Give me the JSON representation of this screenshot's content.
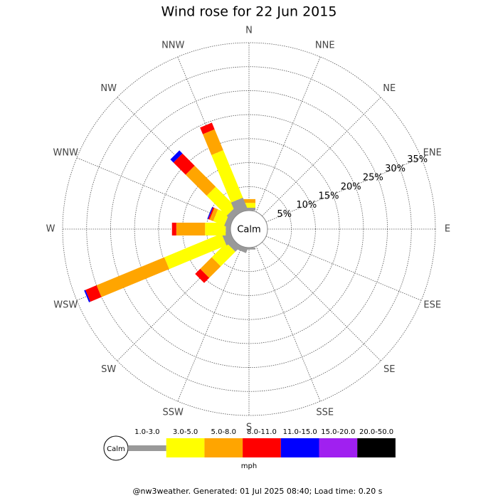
{
  "chart_data": {
    "type": "windrose",
    "title": "Wind rose for 22 Jun 2015",
    "categories": [
      "N",
      "NNE",
      "NE",
      "ENE",
      "E",
      "ESE",
      "SE",
      "SSE",
      "S",
      "SSW",
      "SW",
      "WSW",
      "W",
      "WNW",
      "NW",
      "NNW"
    ],
    "calm_label": "Calm",
    "series": [
      {
        "name": "1.0-3.0",
        "color": "#999999",
        "values": [
          0.6,
          0,
          0,
          0,
          0,
          0,
          0,
          0,
          0.4,
          1.0,
          1.5,
          1.8,
          1.0,
          1.2,
          1.4,
          2.7
        ]
      },
      {
        "name": "3.0-5.0",
        "color": "#ffff00",
        "values": [
          1.0,
          0,
          0,
          0,
          0,
          0,
          0,
          0,
          0,
          0,
          4.3,
          12.9,
          4.3,
          2.5,
          5.9,
          10.7
        ]
      },
      {
        "name": "5.0-8.0",
        "color": "#ffa500",
        "values": [
          0.8,
          0,
          0,
          0,
          0,
          0,
          0,
          0,
          0,
          0,
          3.4,
          15.3,
          6.0,
          0.8,
          6.2,
          4.7
        ]
      },
      {
        "name": "8.0-11.0",
        "color": "#ff0000",
        "values": [
          0,
          0,
          0,
          0,
          0,
          0,
          0,
          0,
          0,
          0,
          1.5,
          2.5,
          0.9,
          0.3,
          3.6,
          1.5
        ]
      },
      {
        "name": "11.0-15.0",
        "color": "#0000ff",
        "values": [
          0,
          0,
          0,
          0,
          0,
          0,
          0,
          0,
          0,
          0,
          0,
          0.3,
          0,
          0.2,
          0.9,
          0
        ]
      },
      {
        "name": "15.0-20.0",
        "color": "#a020f0",
        "values": [
          0,
          0,
          0,
          0,
          0,
          0,
          0,
          0,
          0,
          0,
          0,
          0,
          0,
          0,
          0,
          0
        ]
      },
      {
        "name": "20.0-50.0",
        "color": "#000000",
        "values": [
          0,
          0,
          0,
          0,
          0,
          0,
          0,
          0,
          0,
          0,
          0,
          0,
          0,
          0,
          0,
          0
        ]
      }
    ],
    "rlim": [
      0,
      35
    ],
    "rticks": [
      {
        "value": 5,
        "label": "5%"
      },
      {
        "value": 10,
        "label": "10%"
      },
      {
        "value": 15,
        "label": "15%"
      },
      {
        "value": 20,
        "label": "20%"
      },
      {
        "value": 25,
        "label": "25%"
      },
      {
        "value": 30,
        "label": "30%"
      },
      {
        "value": 35,
        "label": "35%"
      }
    ],
    "grid": true,
    "legend_unit": "mph",
    "footer": "@nw3weather. Generated: 01 Jul 2025 08:40; Load time: 0.20 s"
  }
}
